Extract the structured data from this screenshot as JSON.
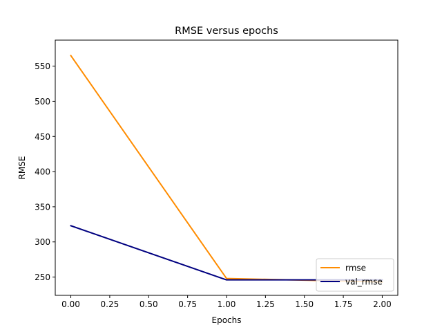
{
  "chart_data": {
    "type": "line",
    "title": "RMSE versus epochs",
    "xlabel": "Epochs",
    "ylabel": "RMSE",
    "xlim": [
      -0.1,
      2.1
    ],
    "ylim": [
      224,
      587
    ],
    "x_ticks": [
      0.0,
      0.25,
      0.5,
      0.75,
      1.0,
      1.25,
      1.5,
      1.75,
      2.0
    ],
    "x_tick_labels": [
      "0.00",
      "0.25",
      "0.50",
      "0.75",
      "1.00",
      "1.25",
      "1.50",
      "1.75",
      "2.00"
    ],
    "y_ticks": [
      250,
      300,
      350,
      400,
      450,
      500,
      550
    ],
    "y_tick_labels": [
      "250",
      "300",
      "350",
      "400",
      "450",
      "500",
      "550"
    ],
    "grid": false,
    "legend_position": "lower-right",
    "series": [
      {
        "name": "rmse",
        "color": "#ff8c00",
        "x": [
          0,
          1,
          2
        ],
        "values": [
          565,
          248,
          243
        ]
      },
      {
        "name": "val_rmse",
        "color": "#000080",
        "x": [
          0,
          1,
          2
        ],
        "values": [
          323,
          246,
          246
        ]
      }
    ]
  }
}
